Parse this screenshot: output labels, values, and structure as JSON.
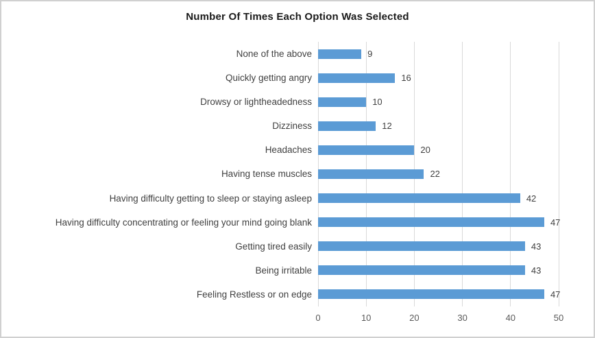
{
  "chart_data": {
    "type": "bar",
    "orientation": "horizontal",
    "title": "Number Of Times Each Option Was Selected",
    "categories": [
      "None of the above",
      "Quickly getting angry",
      "Drowsy or lightheadedness",
      "Dizziness",
      "Headaches",
      "Having tense muscles",
      "Having difficulty getting to sleep or staying asleep",
      "Having difficulty concentrating or feeling your mind going blank",
      "Getting tired easily",
      "Being irritable",
      "Feeling Restless or on edge"
    ],
    "values": [
      9,
      16,
      10,
      12,
      20,
      22,
      42,
      47,
      43,
      43,
      47
    ],
    "xlabel": "",
    "ylabel": "",
    "xlim": [
      0,
      50
    ],
    "x_ticks": [
      "0",
      "10",
      "20",
      "30",
      "40",
      "50"
    ],
    "grid": true,
    "legend": false,
    "data_labels": true,
    "colors": {
      "bar": "#5b9bd5",
      "gridline": "#d9d9d9",
      "title_text": "#1a1a1a",
      "category_text": "#404040",
      "value_text": "#404040",
      "tick_text": "#595959",
      "border": "#d0d0d0",
      "background": "#ffffff"
    }
  }
}
